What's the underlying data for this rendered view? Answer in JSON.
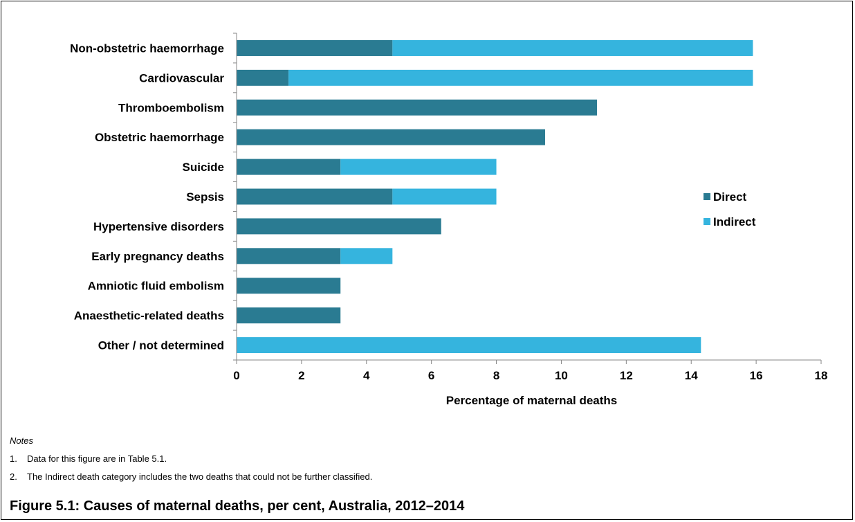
{
  "chart_data": {
    "type": "bar",
    "orientation": "horizontal",
    "stacked": true,
    "categories": [
      "Non-obstetric haemorrhage",
      "Cardiovascular",
      "Thromboembolism",
      "Obstetric haemorrhage",
      "Suicide",
      "Sepsis",
      "Hypertensive disorders",
      "Early pregnancy deaths",
      "Amniotic fluid embolism",
      "Anaesthetic-related deaths",
      "Other / not determined"
    ],
    "series": [
      {
        "name": "Direct",
        "color": "#2a7b92",
        "values": [
          4.8,
          1.6,
          11.1,
          9.5,
          3.2,
          4.8,
          6.3,
          3.2,
          3.2,
          3.2,
          0
        ]
      },
      {
        "name": "Indirect",
        "color": "#35b4de",
        "values": [
          11.1,
          14.3,
          0,
          0,
          4.8,
          3.2,
          0,
          1.6,
          0,
          0,
          14.3
        ]
      }
    ],
    "xlabel": "Percentage of maternal deaths",
    "xlim": [
      0,
      18
    ],
    "xticks": [
      0,
      2,
      4,
      6,
      8,
      10,
      12,
      14,
      16,
      18
    ],
    "grid": false,
    "legend_position": "right"
  },
  "notes": {
    "heading": "Notes",
    "items": [
      {
        "number": "1.",
        "text": "Data for this figure are in Table 5.1."
      },
      {
        "number": "2.",
        "text": "The Indirect death category includes the two deaths that could not be further classified."
      }
    ]
  },
  "caption": "Figure 5.1: Causes of maternal deaths, per cent, Australia, 2012–2014"
}
